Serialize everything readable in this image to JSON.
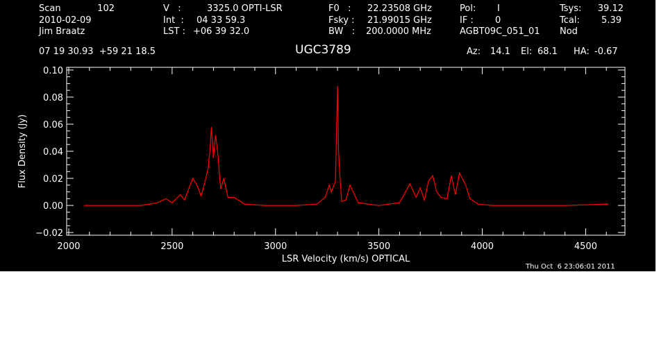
{
  "header": {
    "scan_label": "Scan",
    "scan_value": "102",
    "date": "2010-02-09",
    "observer": "Jim Braatz",
    "coords": "07 19 30.93  +59 21 18.5",
    "v_label": "V   :",
    "v_value": "3325.0 OPTI-LSR",
    "int_label": "Int  :",
    "int_value": "04 33 59.3",
    "lst_label": "LST :",
    "lst_value": "+06 39 32.0",
    "f0_label": "F0   :",
    "f0_value": "22.23508 GHz",
    "fsky_label": "Fsky :",
    "fsky_value": "21.99015 GHz",
    "bw_label": "BW   :",
    "bw_value": "200.0000 MHz",
    "pol_label": "Pol:",
    "pol_value": "I",
    "if_label": "IF :",
    "if_value": "0",
    "session": "AGBT09C_051_01",
    "tsys_label": "Tsys:",
    "tsys_value": "39.12",
    "tcal_label": "Tcal:",
    "tcal_value": "5.39",
    "mode": "Nod",
    "source": "UGC3789",
    "az_label": "Az:",
    "az_value": "14.1",
    "el_label": "El:",
    "el_value": "68.1",
    "ha_label": "HA:",
    "ha_value": "-0.67"
  },
  "timestamp": "Thu Oct  6 23:06:01 2011",
  "colors": {
    "background": "#000000",
    "axes": "#ffffff",
    "spectrum": "#ff0000"
  },
  "chart_data": {
    "type": "line",
    "title": "UGC3789",
    "xlabel": "LSR Velocity (km/s) OPTICAL",
    "ylabel": "Flux Density (Jy)",
    "xlim": [
      1990,
      4690
    ],
    "ylim": [
      -0.022,
      0.102
    ],
    "x_ticks": [
      2000,
      2500,
      3000,
      3500,
      4000,
      4500
    ],
    "x_tick_labels": [
      "2000",
      "2500",
      "3000",
      "3500",
      "4000",
      "4500"
    ],
    "y_ticks": [
      -0.02,
      0.0,
      0.02,
      0.04,
      0.06,
      0.08,
      0.1
    ],
    "y_tick_labels": [
      "−0.02",
      "0.00",
      "0.02",
      "0.04",
      "0.06",
      "0.08",
      "0.10"
    ],
    "series": [
      {
        "x": [
          2075,
          2150,
          2250,
          2350,
          2430,
          2470,
          2500,
          2540,
          2560,
          2580,
          2600,
          2620,
          2640,
          2660,
          2675,
          2685,
          2690,
          2700,
          2710,
          2720,
          2735,
          2750,
          2770,
          2800,
          2850,
          2950,
          3100,
          3200,
          3240,
          3260,
          3270,
          3290,
          3300,
          3305,
          3310,
          3320,
          3340,
          3360,
          3400,
          3500,
          3600,
          3650,
          3680,
          3700,
          3720,
          3740,
          3760,
          3780,
          3800,
          3830,
          3850,
          3870,
          3890,
          3920,
          3940,
          3980,
          4050,
          4200,
          4400,
          4610
        ],
        "y": [
          0.0,
          0.0,
          0.0,
          0.0,
          0.002,
          0.005,
          0.002,
          0.008,
          0.004,
          0.012,
          0.02,
          0.015,
          0.007,
          0.018,
          0.028,
          0.045,
          0.058,
          0.035,
          0.052,
          0.04,
          0.012,
          0.02,
          0.006,
          0.006,
          0.001,
          0.0,
          0.0,
          0.001,
          0.006,
          0.015,
          0.01,
          0.018,
          0.088,
          0.04,
          0.025,
          0.003,
          0.004,
          0.015,
          0.002,
          0.0,
          0.002,
          0.016,
          0.006,
          0.013,
          0.004,
          0.018,
          0.022,
          0.01,
          0.006,
          0.005,
          0.022,
          0.008,
          0.024,
          0.015,
          0.005,
          0.001,
          0.0,
          0.0,
          0.0,
          0.001
        ]
      }
    ]
  }
}
